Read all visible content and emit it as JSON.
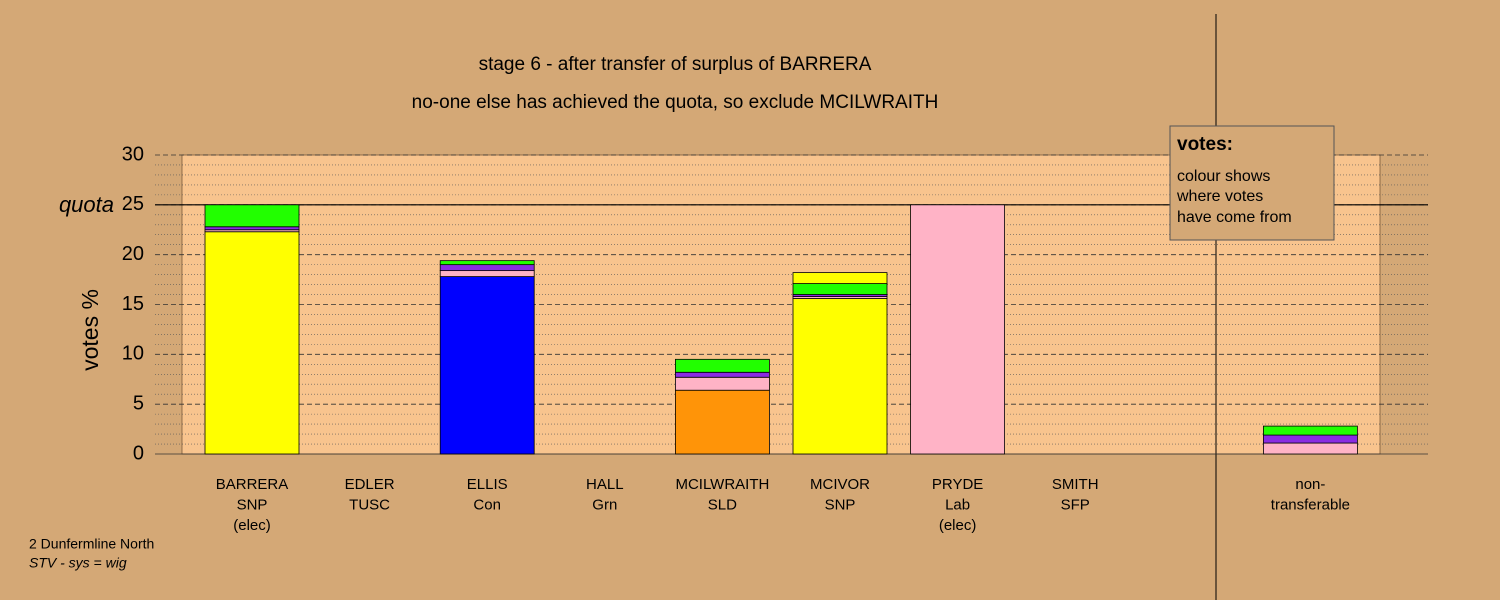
{
  "chart_data": {
    "type": "stacked-bar",
    "title": "stage 6 - after transfer of surplus of BARRERA",
    "subtitle": "no-one else has achieved the quota, so exclude MCILWRAITH",
    "y_label": "votes %",
    "quota": 25,
    "quota_label": "quota",
    "ylim": [
      0,
      30
    ],
    "yticks": [
      0,
      5,
      10,
      15,
      20,
      {
        "value": 25,
        "label": "25"
      },
      30
    ],
    "minor_yticks": [
      1,
      2,
      3,
      4,
      6,
      7,
      8,
      9,
      11,
      12,
      13,
      14,
      16,
      17,
      18,
      19,
      21,
      22,
      23,
      24,
      26,
      27,
      28,
      29
    ],
    "categories": [
      [
        "BARRERA",
        "SNP",
        "(elec)"
      ],
      [
        "EDLER",
        "TUSC"
      ],
      [
        "ELLIS",
        "Con"
      ],
      [
        "HALL",
        "Grn"
      ],
      [
        "MCILWRAITH",
        "SLD"
      ],
      [
        "MCIVOR",
        "SNP"
      ],
      [
        "PRYDE",
        "Lab",
        "(elec)"
      ],
      [
        "SMITH",
        "SFP"
      ],
      [
        "non-",
        "transferable"
      ]
    ],
    "segments": [
      [
        {
          "color": "#ffff00",
          "value": 22.3
        },
        {
          "color": "#ffb3c6",
          "value": 0.2
        },
        {
          "color": "#8a2be2",
          "value": 0.3
        },
        {
          "color": "#22ff00",
          "value": 2.2
        }
      ],
      [],
      [
        {
          "color": "#0000ff",
          "value": 17.8
        },
        {
          "color": "#ffb3c6",
          "value": 0.6
        },
        {
          "color": "#8a2be2",
          "value": 0.6
        },
        {
          "color": "#22ff00",
          "value": 0.4
        }
      ],
      [],
      [
        {
          "color": "#ff9408",
          "value": 6.4
        },
        {
          "color": "#ffb3c6",
          "value": 1.3
        },
        {
          "color": "#8a2be2",
          "value": 0.5
        },
        {
          "color": "#22ff00",
          "value": 1.3
        }
      ],
      [
        {
          "color": "#ffff00",
          "value": 15.6
        },
        {
          "color": "#ffb3c6",
          "value": 0.2
        },
        {
          "color": "#8a2be2",
          "value": 0.2
        },
        {
          "color": "#22ff00",
          "value": 1.1
        },
        {
          "color": "#ffff00",
          "value": 1.1
        }
      ],
      [
        {
          "color": "#ffb3c6",
          "value": 25
        }
      ],
      [],
      [
        {
          "color": "#ffb3c6",
          "value": 1.1
        },
        {
          "color": "#8a2be2",
          "value": 0.8
        },
        {
          "color": "#22ff00",
          "value": 0.9
        }
      ]
    ],
    "legend": {
      "title": "votes:",
      "lines": [
        "colour shows",
        "where votes",
        "have come from"
      ]
    },
    "footer": [
      "2 Dunfermline North",
      "STV - sys = wig"
    ]
  }
}
